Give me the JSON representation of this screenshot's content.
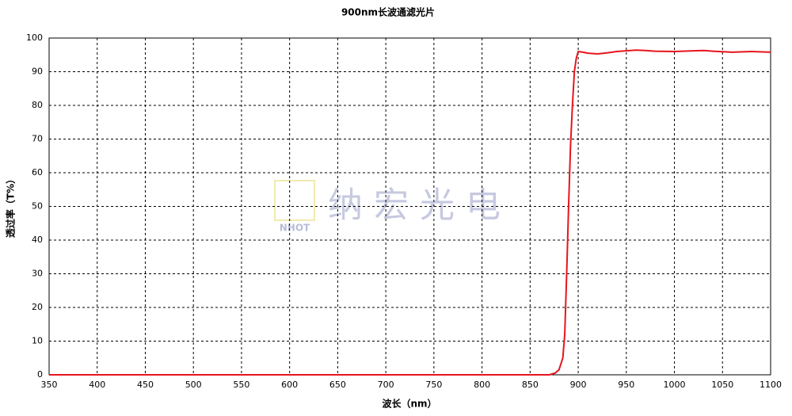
{
  "chart_data": {
    "type": "line",
    "title": "900nm长波通滤光片",
    "x_label": "波长（nm）",
    "y_label": "透过率（T%）",
    "watermark": {
      "text": "纳宏光电",
      "logo": "NHOT"
    },
    "x": [
      350,
      400,
      500,
      600,
      700,
      800,
      850,
      870,
      876,
      880,
      884,
      886,
      888,
      890,
      892,
      894,
      896,
      898,
      900,
      905,
      910,
      920,
      930,
      940,
      950,
      960,
      970,
      980,
      1000,
      1020,
      1030,
      1040,
      1060,
      1080,
      1100
    ],
    "series": [
      {
        "name": "透过率",
        "color": "#e8141c",
        "values": [
          0,
          0,
          0,
          0,
          0,
          0,
          0,
          0,
          0.5,
          1.5,
          5,
          12,
          30,
          50,
          68,
          80,
          90,
          94,
          96,
          95.8,
          95.5,
          95.3,
          95.6,
          96,
          96.2,
          96.4,
          96.3,
          96.1,
          96,
          96.2,
          96.3,
          96.1,
          95.8,
          96,
          95.8
        ]
      }
    ],
    "xlim": [
      350,
      1100
    ],
    "xticks": [
      350,
      400,
      450,
      500,
      550,
      600,
      650,
      700,
      750,
      800,
      850,
      900,
      950,
      1000,
      1050,
      1100
    ],
    "ylim": [
      0,
      100
    ],
    "yticks": [
      0,
      10,
      20,
      30,
      40,
      50,
      60,
      70,
      80,
      90,
      100
    ],
    "grid": true
  }
}
